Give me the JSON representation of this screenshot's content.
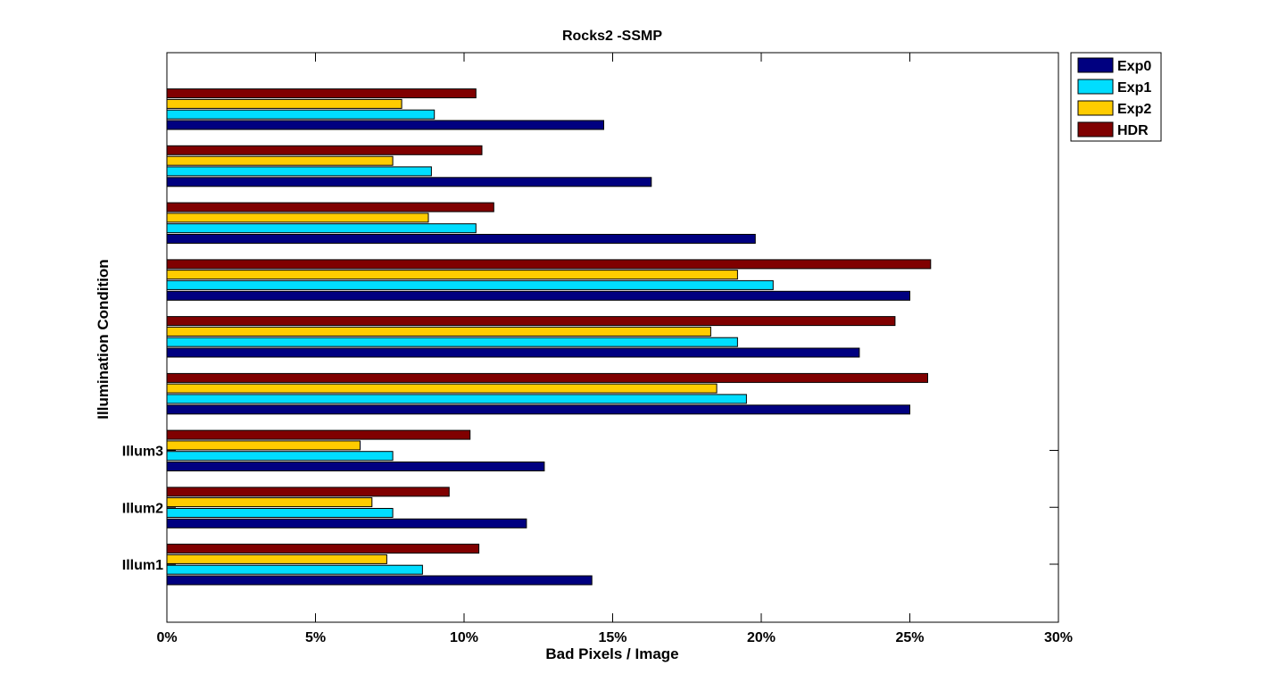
{
  "chart_data": {
    "type": "bar",
    "orientation": "horizontal",
    "title": "Rocks2 -SSMP",
    "xlabel": "Bad Pixels / Image",
    "ylabel": "Illumination Condition",
    "xlim": [
      0,
      30
    ],
    "x_ticks": [
      "0%",
      "5%",
      "10%",
      "15%",
      "20%",
      "25%",
      "30%"
    ],
    "categories": [
      "Illum1",
      "Illum2",
      "Illum3",
      "",
      "",
      "",
      "",
      "",
      ""
    ],
    "series": [
      {
        "name": "Exp0",
        "color": "#000080",
        "values": [
          14.3,
          12.1,
          12.7,
          25.0,
          23.3,
          25.0,
          19.8,
          16.3,
          14.7
        ]
      },
      {
        "name": "Exp1",
        "color": "#00DDFF",
        "values": [
          8.6,
          7.6,
          7.6,
          19.5,
          19.2,
          20.4,
          10.4,
          8.9,
          9.0
        ]
      },
      {
        "name": "Exp2",
        "color": "#FFCC00",
        "values": [
          7.4,
          6.9,
          6.5,
          18.5,
          18.3,
          19.2,
          8.8,
          7.6,
          7.9
        ]
      },
      {
        "name": "HDR",
        "color": "#800000",
        "values": [
          10.5,
          9.5,
          10.2,
          25.6,
          24.5,
          25.7,
          11.0,
          10.6,
          10.4
        ]
      }
    ],
    "grid": false,
    "legend_position": "outside-top-right"
  }
}
